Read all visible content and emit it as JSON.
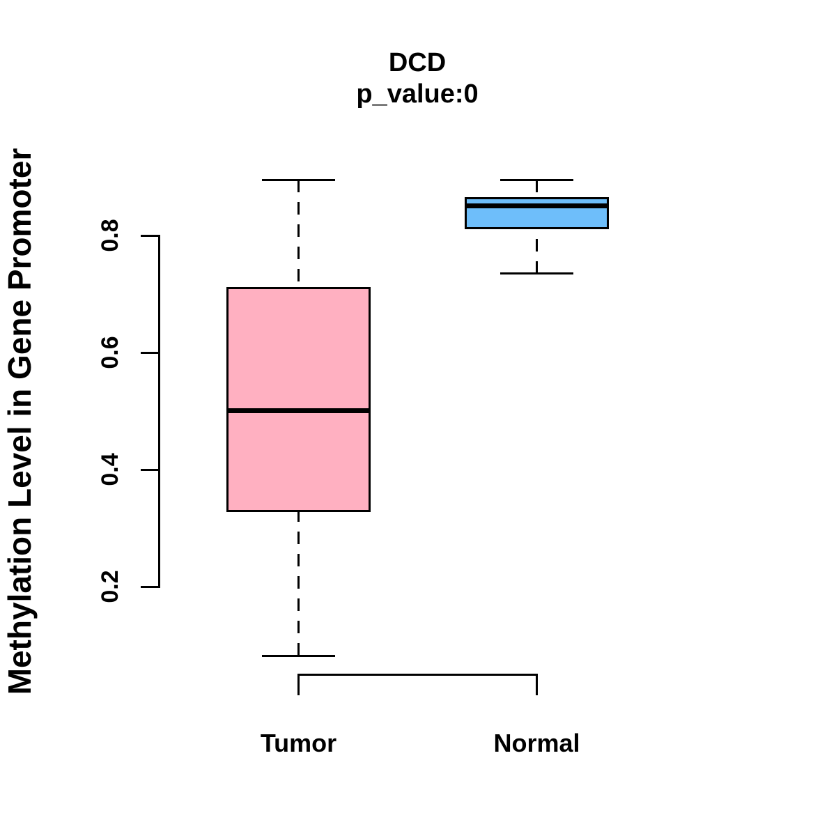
{
  "page": {
    "background_color": "#FFFFFF",
    "text_color": "#000000"
  },
  "chart_data": {
    "type": "boxplot",
    "title": "DCD",
    "subtitle": "p_value:0",
    "ylabel": "Methylation Level in Gene Promoter",
    "xlabel": "",
    "grid": false,
    "legend": "none",
    "axis_color": "#000000",
    "yticks_labels": [
      "0.2",
      "0.4",
      "0.6",
      "0.8"
    ],
    "yticks_values": [
      0.2,
      0.4,
      0.6,
      0.8
    ],
    "yaxis_span": [
      0.2,
      0.8
    ],
    "categories": [
      "Tumor",
      "Normal"
    ],
    "series": [
      {
        "name": "Tumor",
        "fill_color": "#FFB0C1",
        "border_color": "#000000",
        "whisker_low": 0.082,
        "q1": 0.327,
        "median": 0.501,
        "q3": 0.712,
        "whisker_high": 0.895
      },
      {
        "name": "Normal",
        "fill_color": "#6EBEFA",
        "border_color": "#000000",
        "whisker_low": 0.735,
        "q1": 0.811,
        "median": 0.851,
        "q3": 0.866,
        "whisker_high": 0.895
      }
    ]
  }
}
